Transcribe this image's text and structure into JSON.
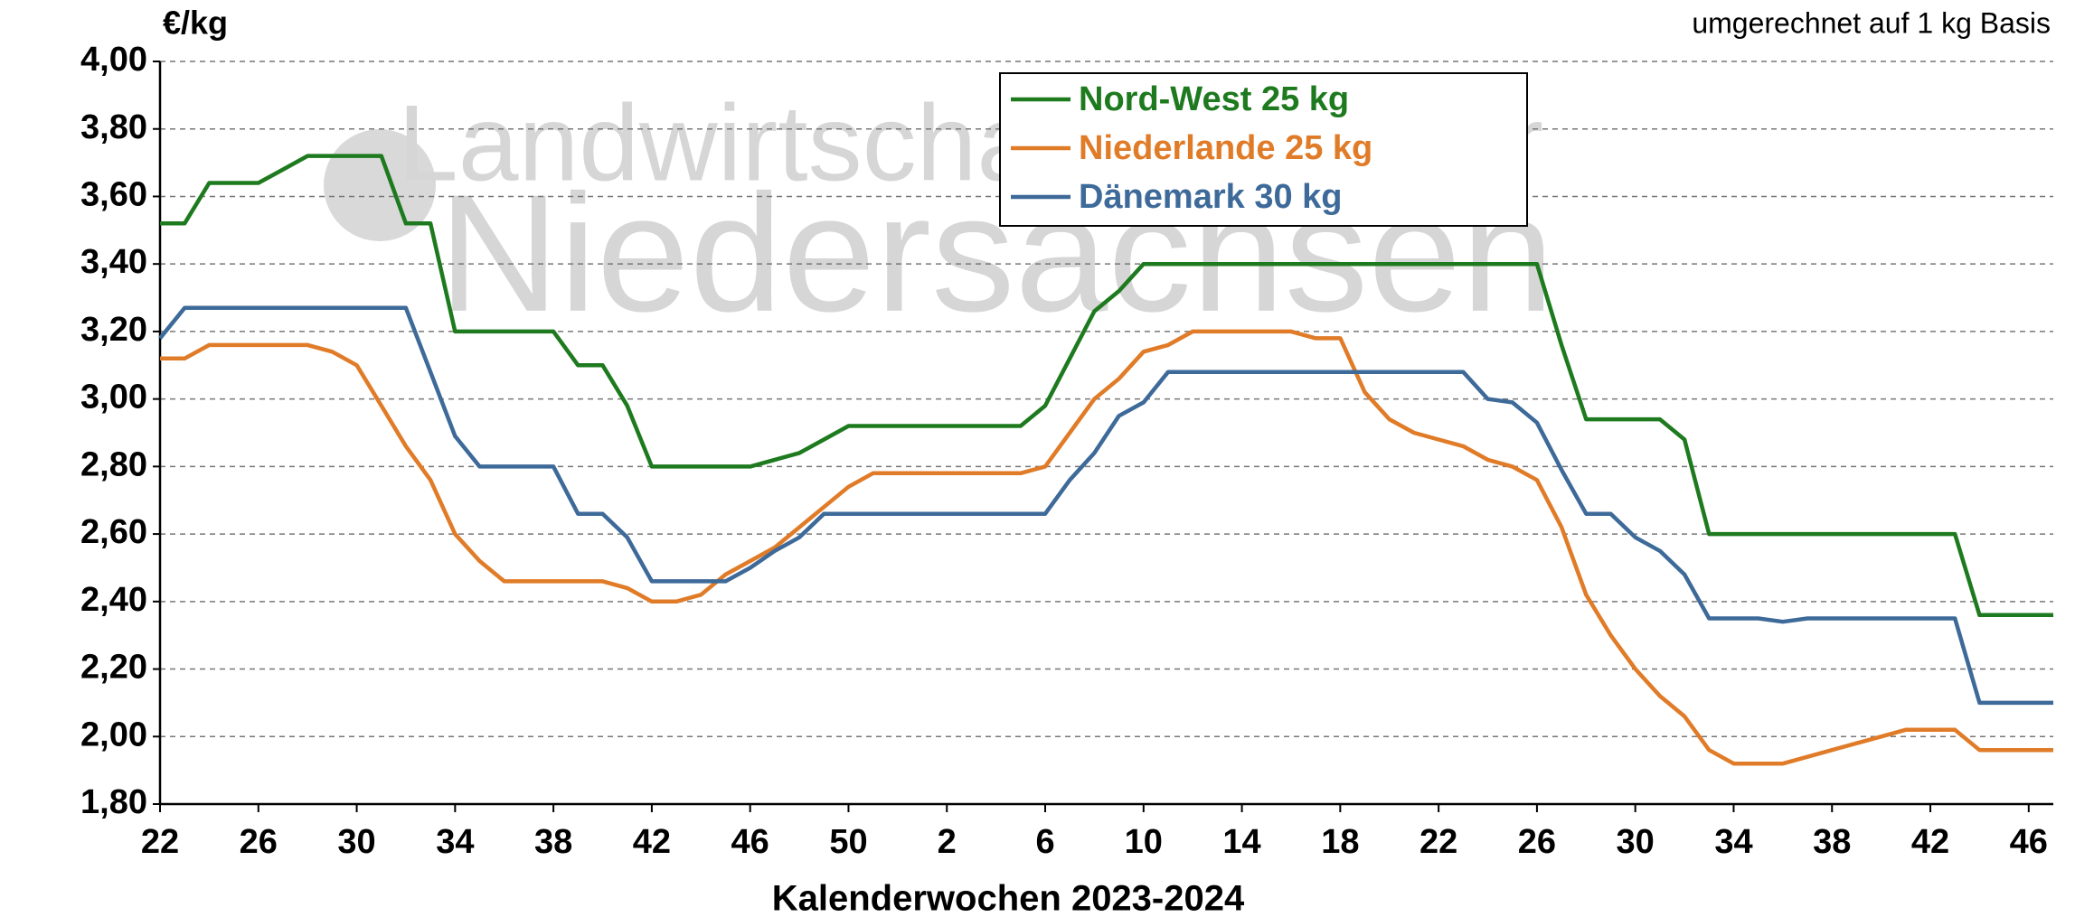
{
  "chart_data": {
    "type": "line",
    "y_unit": "€/kg",
    "note": "umgerechnet  auf 1 kg Basis",
    "x_label": "Kalenderwochen  2023-2024",
    "watermark": [
      "Landwirtschaftskammer",
      "Niedersachsen"
    ],
    "categories": [
      "22",
      null,
      null,
      null,
      "26",
      null,
      null,
      null,
      "30",
      null,
      null,
      null,
      "34",
      null,
      null,
      null,
      "38",
      null,
      null,
      null,
      "42",
      null,
      null,
      null,
      "46",
      null,
      null,
      null,
      "50",
      null,
      null,
      null,
      "2",
      null,
      null,
      null,
      "6",
      null,
      null,
      null,
      "10",
      null,
      null,
      null,
      "14",
      null,
      null,
      null,
      "18",
      null,
      null,
      null,
      "22",
      null,
      null,
      null,
      "26",
      null,
      null,
      null,
      "30",
      null,
      null,
      null,
      "34",
      null,
      null,
      null,
      "38",
      null,
      null,
      null,
      "42",
      null,
      null,
      null,
      "46",
      null
    ],
    "series": [
      {
        "name": "Nord-West 25 kg",
        "color": "#1e7a1e",
        "values": [
          3.52,
          3.52,
          3.64,
          3.64,
          3.64,
          3.68,
          3.72,
          3.72,
          3.72,
          3.72,
          3.52,
          3.52,
          3.2,
          3.2,
          3.2,
          3.2,
          3.2,
          3.1,
          3.1,
          2.98,
          2.8,
          2.8,
          2.8,
          2.8,
          2.8,
          2.82,
          2.84,
          2.88,
          2.92,
          2.92,
          2.92,
          2.92,
          2.92,
          2.92,
          2.92,
          2.92,
          2.98,
          3.12,
          3.26,
          3.32,
          3.4,
          3.4,
          3.4,
          3.4,
          3.4,
          3.4,
          3.4,
          3.4,
          3.4,
          3.4,
          3.4,
          3.4,
          3.4,
          3.4,
          3.4,
          3.4,
          3.4,
          3.16,
          2.94,
          2.94,
          2.94,
          2.94,
          2.88,
          2.6,
          2.6,
          2.6,
          2.6,
          2.6,
          2.6,
          2.6,
          2.6,
          2.6,
          2.6,
          2.6,
          2.36,
          2.36,
          2.36,
          2.36
        ]
      },
      {
        "name": "Niederlande 25 kg",
        "color": "#e07b28",
        "values": [
          3.12,
          3.12,
          3.16,
          3.16,
          3.16,
          3.16,
          3.16,
          3.14,
          3.1,
          2.98,
          2.86,
          2.76,
          2.6,
          2.52,
          2.46,
          2.46,
          2.46,
          2.46,
          2.46,
          2.44,
          2.4,
          2.4,
          2.42,
          2.48,
          2.52,
          2.56,
          2.62,
          2.68,
          2.74,
          2.78,
          2.78,
          2.78,
          2.78,
          2.78,
          2.78,
          2.78,
          2.8,
          2.9,
          3.0,
          3.06,
          3.14,
          3.16,
          3.2,
          3.2,
          3.2,
          3.2,
          3.2,
          3.18,
          3.18,
          3.02,
          2.94,
          2.9,
          2.88,
          2.86,
          2.82,
          2.8,
          2.76,
          2.62,
          2.42,
          2.3,
          2.2,
          2.12,
          2.06,
          1.96,
          1.92,
          1.92,
          1.92,
          1.94,
          1.96,
          1.98,
          2.0,
          2.02,
          2.02,
          2.02,
          1.96,
          1.96,
          1.96,
          1.96
        ]
      },
      {
        "name": "Dänemark 30 kg",
        "color": "#3d6a99",
        "values": [
          3.18,
          3.27,
          3.27,
          3.27,
          3.27,
          3.27,
          3.27,
          3.27,
          3.27,
          3.27,
          3.27,
          3.08,
          2.89,
          2.8,
          2.8,
          2.8,
          2.8,
          2.66,
          2.66,
          2.59,
          2.46,
          2.46,
          2.46,
          2.46,
          2.5,
          2.55,
          2.59,
          2.66,
          2.66,
          2.66,
          2.66,
          2.66,
          2.66,
          2.66,
          2.66,
          2.66,
          2.66,
          2.76,
          2.84,
          2.95,
          2.99,
          3.08,
          3.08,
          3.08,
          3.08,
          3.08,
          3.08,
          3.08,
          3.08,
          3.08,
          3.08,
          3.08,
          3.08,
          3.08,
          3.0,
          2.99,
          2.93,
          2.79,
          2.66,
          2.66,
          2.59,
          2.55,
          2.48,
          2.35,
          2.35,
          2.35,
          2.34,
          2.35,
          2.35,
          2.35,
          2.35,
          2.35,
          2.35,
          2.35,
          2.1,
          2.1,
          2.1,
          2.1
        ]
      }
    ],
    "ylim": [
      1.8,
      4.0
    ],
    "yticks": [
      {
        "value": 1.8,
        "label": "1,80"
      },
      {
        "value": 2.0,
        "label": "2,00"
      },
      {
        "value": 2.2,
        "label": "2,20"
      },
      {
        "value": 2.4,
        "label": "2,40"
      },
      {
        "value": 2.6,
        "label": "2,60"
      },
      {
        "value": 2.8,
        "label": "2,80"
      },
      {
        "value": 3.0,
        "label": "3,00"
      },
      {
        "value": 3.2,
        "label": "3,20"
      },
      {
        "value": 3.4,
        "label": "3,40"
      },
      {
        "value": 3.6,
        "label": "3,60"
      },
      {
        "value": 3.8,
        "label": "3,80"
      },
      {
        "value": 4.0,
        "label": "4,00"
      }
    ],
    "grid": true
  }
}
